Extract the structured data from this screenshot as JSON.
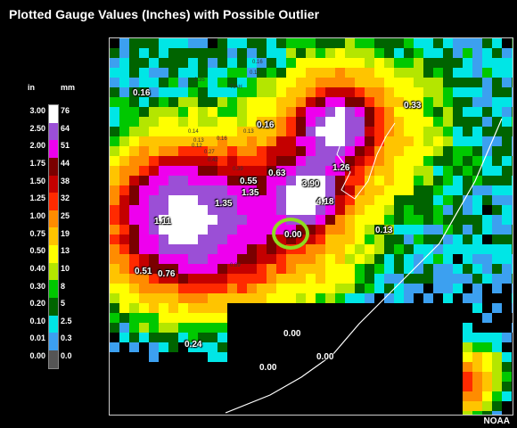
{
  "title": "Plotted Gauge Values (Inches) with Possible Outlier",
  "credit": "NOAA",
  "legend": {
    "unit_in": "in",
    "unit_mm": "mm",
    "steps": [
      {
        "in": "3.00",
        "mm": "76",
        "color": "#ffffff"
      },
      {
        "in": "2.50",
        "mm": "64",
        "color": "#9b4fd6"
      },
      {
        "in": "2.00",
        "mm": "51",
        "color": "#ee00ee"
      },
      {
        "in": "1.75",
        "mm": "44",
        "color": "#7a0000"
      },
      {
        "in": "1.50",
        "mm": "38",
        "color": "#c40000"
      },
      {
        "in": "1.25",
        "mm": "32",
        "color": "#ff2a00"
      },
      {
        "in": "1.00",
        "mm": "25",
        "color": "#ff8c00"
      },
      {
        "in": "0.75",
        "mm": "19",
        "color": "#ffc400"
      },
      {
        "in": "0.50",
        "mm": "13",
        "color": "#ffff00"
      },
      {
        "in": "0.40",
        "mm": "10",
        "color": "#b4e600"
      },
      {
        "in": "0.30",
        "mm": "8",
        "color": "#00c800"
      },
      {
        "in": "0.20",
        "mm": "5",
        "color": "#006400"
      },
      {
        "in": "0.10",
        "mm": "2.5",
        "color": "#00e6e6"
      },
      {
        "in": "0.01",
        "mm": "0.3",
        "color": "#3ca0f0"
      },
      {
        "in": "0.00",
        "mm": "0.0",
        "color": "#555555"
      }
    ]
  },
  "gauges": [
    {
      "value": "0.16"
    },
    {
      "value": "0.16"
    },
    {
      "value": "0.33"
    },
    {
      "value": "1.26"
    },
    {
      "value": "0.63"
    },
    {
      "value": "0.55"
    },
    {
      "value": "3.90"
    },
    {
      "value": "4.18"
    },
    {
      "value": "1.35"
    },
    {
      "value": "1.35"
    },
    {
      "value": "1.11"
    },
    {
      "value": "0.00"
    },
    {
      "value": "0.13"
    },
    {
      "value": "0.51"
    },
    {
      "value": "0.76"
    },
    {
      "value": "0.24"
    },
    {
      "value": "0.00"
    },
    {
      "value": "0.00"
    },
    {
      "value": "0.00"
    }
  ],
  "small_labels": [
    "TIAH",
    "0.35",
    "0.16",
    "0.16",
    "0.13",
    "0.16",
    "0.14",
    "0.12",
    "0.27",
    "0.39",
    "0.89",
    "0.13",
    "0.42"
  ]
}
